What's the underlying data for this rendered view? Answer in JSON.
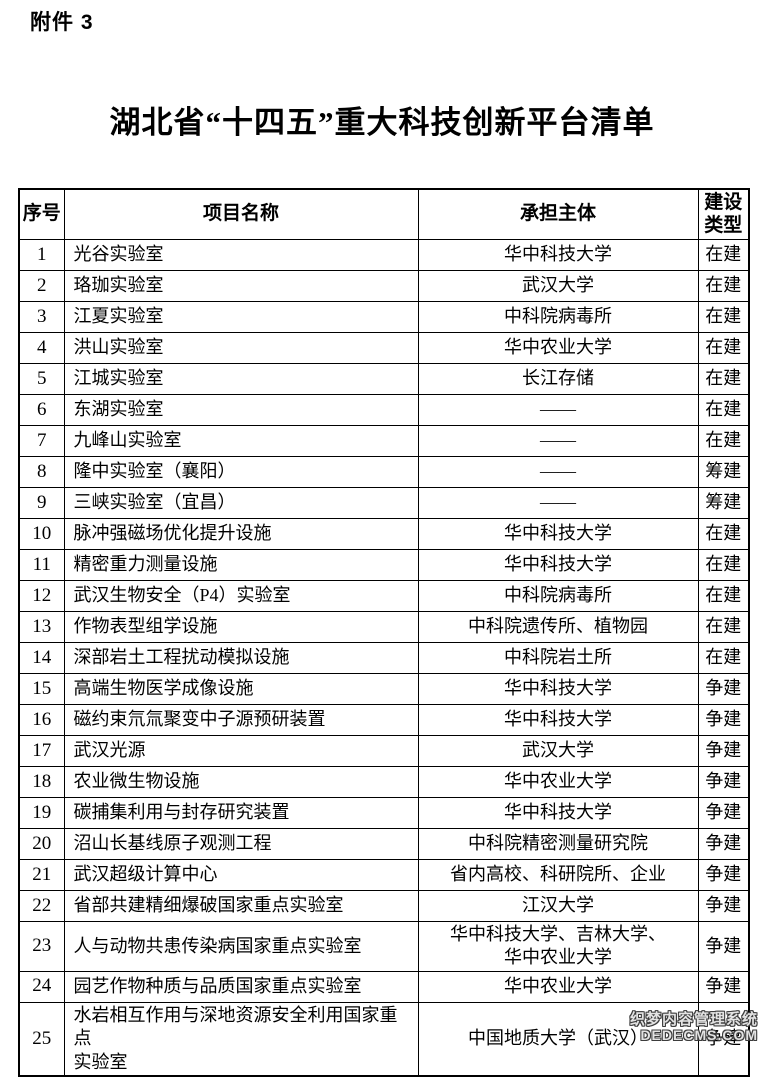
{
  "page": {
    "attachment_label": "附件 3"
  },
  "title": "湖北省“十四五”重大科技创新平台清单",
  "table": {
    "headers": {
      "index": "序号",
      "name": "项目名称",
      "entity": "承担主体",
      "type": "建设\n类型"
    },
    "rows": [
      {
        "index": "1",
        "name": "光谷实验室",
        "entity": "华中科技大学",
        "type": "在建"
      },
      {
        "index": "2",
        "name": "珞珈实验室",
        "entity": "武汉大学",
        "type": "在建"
      },
      {
        "index": "3",
        "name": "江夏实验室",
        "entity": "中科院病毒所",
        "type": "在建"
      },
      {
        "index": "4",
        "name": "洪山实验室",
        "entity": "华中农业大学",
        "type": "在建"
      },
      {
        "index": "5",
        "name": "江城实验室",
        "entity": "长江存储",
        "type": "在建"
      },
      {
        "index": "6",
        "name": "东湖实验室",
        "entity": "——",
        "type": "在建"
      },
      {
        "index": "7",
        "name": "九峰山实验室",
        "entity": "——",
        "type": "在建"
      },
      {
        "index": "8",
        "name": "隆中实验室（襄阳）",
        "entity": "——",
        "type": "筹建"
      },
      {
        "index": "9",
        "name": "三峡实验室（宜昌）",
        "entity": "——",
        "type": "筹建"
      },
      {
        "index": "10",
        "name": "脉冲强磁场优化提升设施",
        "entity": "华中科技大学",
        "type": "在建"
      },
      {
        "index": "11",
        "name": "精密重力测量设施",
        "entity": "华中科技大学",
        "type": "在建"
      },
      {
        "index": "12",
        "name": "武汉生物安全（P4）实验室",
        "entity": "中科院病毒所",
        "type": "在建"
      },
      {
        "index": "13",
        "name": "作物表型组学设施",
        "entity": "中科院遗传所、植物园",
        "type": "在建"
      },
      {
        "index": "14",
        "name": "深部岩土工程扰动模拟设施",
        "entity": "中科院岩土所",
        "type": "在建"
      },
      {
        "index": "15",
        "name": "高端生物医学成像设施",
        "entity": "华中科技大学",
        "type": "争建"
      },
      {
        "index": "16",
        "name": "磁约束氘氚聚变中子源预研装置",
        "entity": "华中科技大学",
        "type": "争建"
      },
      {
        "index": "17",
        "name": "武汉光源",
        "entity": "武汉大学",
        "type": "争建"
      },
      {
        "index": "18",
        "name": "农业微生物设施",
        "entity": "华中农业大学",
        "type": "争建"
      },
      {
        "index": "19",
        "name": "碳捕集利用与封存研究装置",
        "entity": "华中科技大学",
        "type": "争建"
      },
      {
        "index": "20",
        "name": "沼山长基线原子观测工程",
        "entity": "中科院精密测量研究院",
        "type": "争建"
      },
      {
        "index": "21",
        "name": "武汉超级计算中心",
        "entity": "省内高校、科研院所、企业",
        "type": "争建"
      },
      {
        "index": "22",
        "name": "省部共建精细爆破国家重点实验室",
        "entity": "江汉大学",
        "type": "争建"
      },
      {
        "index": "23",
        "name": "人与动物共患传染病国家重点实验室",
        "entity": "华中科技大学、吉林大学、\n华中农业大学",
        "type": "争建"
      },
      {
        "index": "24",
        "name": "园艺作物种质与品质国家重点实验室",
        "entity": "华中农业大学",
        "type": "争建"
      },
      {
        "index": "25",
        "name": "水岩相互作用与深地资源安全利用国家重点\n实验室",
        "entity": "中国地质大学（武汉）",
        "type": "争建"
      }
    ]
  },
  "watermark": {
    "line1": "织梦内容管理系统",
    "line2": "DEDECMS.COM"
  }
}
